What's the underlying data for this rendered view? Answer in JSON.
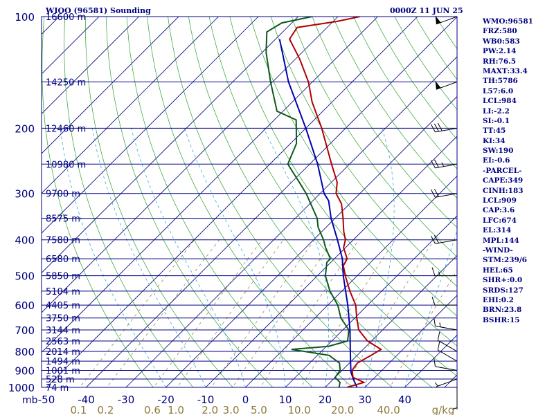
{
  "header": {
    "title": "WIOO (96581) Sounding",
    "datetime": "0000Z 11 JUN 25"
  },
  "indices": [
    "WMO:96581",
    "FRZ:580",
    "WB0:583",
    "PW:2.14",
    "RH:76.5",
    "MAXT:33.4",
    "TH:5786",
    "L57:6.0",
    "LCL:984",
    "LI:-2.2",
    "SI:-0.1",
    "TT:45",
    "KI:34",
    "SW:190",
    "EI:-0.6",
    "-PARCEL-",
    "CAPE:349",
    "CINH:183",
    "LCL:909",
    "CAP:3.6",
    "LFC:674",
    "EL:314",
    "MPL:144",
    "-WIND-",
    "STM:239/6",
    "HEL:65",
    "SHR+:0.0",
    "SRDS:127",
    "EHI:0.2",
    "BRN:23.8",
    "BSHR:15"
  ],
  "chart_data": {
    "type": "skew-t",
    "pressure_unit_label": "mb",
    "pressure_levels": [
      1000,
      900,
      800,
      700,
      600,
      500,
      400,
      300,
      200,
      100
    ],
    "height_labels": [
      {
        "p": 100,
        "label": "16600 m"
      },
      {
        "p": 150,
        "label": "14250 m"
      },
      {
        "p": 200,
        "label": "12460 m"
      },
      {
        "p": 250,
        "label": "10980 m"
      },
      {
        "p": 300,
        "label": "9700 m"
      },
      {
        "p": 350,
        "label": "8575 m"
      },
      {
        "p": 400,
        "label": "7580 m"
      },
      {
        "p": 450,
        "label": "6580 m"
      },
      {
        "p": 500,
        "label": "5850 m"
      },
      {
        "p": 550,
        "label": "5104 m"
      },
      {
        "p": 600,
        "label": "4405 m"
      },
      {
        "p": 650,
        "label": "3750 m"
      },
      {
        "p": 700,
        "label": "3144 m"
      },
      {
        "p": 750,
        "label": "2563 m"
      },
      {
        "p": 800,
        "label": "2014 m"
      },
      {
        "p": 850,
        "label": "1494 m"
      },
      {
        "p": 900,
        "label": "1001 m"
      },
      {
        "p": 950,
        "label": "528 m"
      },
      {
        "p": 1000,
        "label": "74 m"
      }
    ],
    "temperature_ticks": [
      -50,
      -40,
      -30,
      -20,
      -10,
      0,
      10,
      20,
      30,
      40
    ],
    "mixing_ratio_ticks": [
      "0.1",
      "0.2",
      "0.6",
      "1.0",
      "2.0",
      "3.0",
      "5.0",
      "10.0",
      "20.0",
      "40.0"
    ],
    "mixing_ratio_unit": "g/kg",
    "temperature": [
      {
        "p": 1000,
        "t": 25.5
      },
      {
        "p": 970,
        "t": 28.5
      },
      {
        "p": 940,
        "t": 24.5
      },
      {
        "p": 900,
        "t": 22.5
      },
      {
        "p": 860,
        "t": 22.0
      },
      {
        "p": 820,
        "t": 23.5
      },
      {
        "p": 790,
        "t": 24.5
      },
      {
        "p": 750,
        "t": 19.0
      },
      {
        "p": 700,
        "t": 14.0
      },
      {
        "p": 650,
        "t": 10.5
      },
      {
        "p": 600,
        "t": 7.0
      },
      {
        "p": 550,
        "t": 2.0
      },
      {
        "p": 500,
        "t": -3.0
      },
      {
        "p": 470,
        "t": -6.0
      },
      {
        "p": 450,
        "t": -6.8
      },
      {
        "p": 420,
        "t": -10.5
      },
      {
        "p": 400,
        "t": -12.0
      },
      {
        "p": 380,
        "t": -14.5
      },
      {
        "p": 350,
        "t": -18.0
      },
      {
        "p": 320,
        "t": -22.0
      },
      {
        "p": 300,
        "t": -26.0
      },
      {
        "p": 280,
        "t": -28.5
      },
      {
        "p": 250,
        "t": -34.5
      },
      {
        "p": 200,
        "t": -46.0
      },
      {
        "p": 170,
        "t": -55.0
      },
      {
        "p": 150,
        "t": -61.0
      },
      {
        "p": 130,
        "t": -69.0
      },
      {
        "p": 115,
        "t": -76.5
      },
      {
        "p": 107,
        "t": -77.5
      },
      {
        "p": 103,
        "t": -69.0
      },
      {
        "p": 100,
        "t": -64.5
      }
    ],
    "dewpoint": [
      {
        "p": 1000,
        "t": 23.5
      },
      {
        "p": 970,
        "t": 22.5
      },
      {
        "p": 940,
        "t": 20.0
      },
      {
        "p": 900,
        "t": 19.5
      },
      {
        "p": 860,
        "t": 17.5
      },
      {
        "p": 820,
        "t": 13.0
      },
      {
        "p": 790,
        "t": 2.0
      },
      {
        "p": 775,
        "t": 10.5
      },
      {
        "p": 750,
        "t": 14.0
      },
      {
        "p": 700,
        "t": 11.5
      },
      {
        "p": 650,
        "t": 6.5
      },
      {
        "p": 600,
        "t": 2.5
      },
      {
        "p": 550,
        "t": -3.0
      },
      {
        "p": 500,
        "t": -8.0
      },
      {
        "p": 460,
        "t": -11.0
      },
      {
        "p": 450,
        "t": -11.0
      },
      {
        "p": 420,
        "t": -15.0
      },
      {
        "p": 400,
        "t": -17.5
      },
      {
        "p": 370,
        "t": -22.0
      },
      {
        "p": 350,
        "t": -24.5
      },
      {
        "p": 300,
        "t": -33.5
      },
      {
        "p": 280,
        "t": -38.0
      },
      {
        "p": 250,
        "t": -45.5
      },
      {
        "p": 220,
        "t": -48.5
      },
      {
        "p": 190,
        "t": -54.5
      },
      {
        "p": 180,
        "t": -61.5
      },
      {
        "p": 150,
        "t": -70.5
      },
      {
        "p": 125,
        "t": -79.0
      },
      {
        "p": 110,
        "t": -84.0
      },
      {
        "p": 104,
        "t": -82.5
      },
      {
        "p": 100,
        "t": -76.5
      }
    ],
    "parcel": [
      {
        "p": 1000,
        "t": 28.0
      },
      {
        "p": 950,
        "t": 25.0
      },
      {
        "p": 909,
        "t": 22.6
      },
      {
        "p": 850,
        "t": 19.8
      },
      {
        "p": 800,
        "t": 17.3
      },
      {
        "p": 700,
        "t": 11.8
      },
      {
        "p": 600,
        "t": 5.0
      },
      {
        "p": 500,
        "t": -3.5
      },
      {
        "p": 450,
        "t": -8.0
      },
      {
        "p": 400,
        "t": -14.0
      },
      {
        "p": 350,
        "t": -21.0
      },
      {
        "p": 314,
        "t": -26.0
      },
      {
        "p": 300,
        "t": -29.0
      },
      {
        "p": 250,
        "t": -38.0
      },
      {
        "p": 200,
        "t": -50.0
      },
      {
        "p": 150,
        "t": -66.0
      },
      {
        "p": 115,
        "t": -79.0
      }
    ],
    "winds": [
      {
        "p": 1000,
        "dir": 180,
        "kt": 5
      },
      {
        "p": 950,
        "dir": 250,
        "kt": 5
      },
      {
        "p": 900,
        "dir": 280,
        "kt": 10
      },
      {
        "p": 850,
        "dir": 300,
        "kt": 10
      },
      {
        "p": 800,
        "dir": 300,
        "kt": 10
      },
      {
        "p": 700,
        "dir": 280,
        "kt": 15
      },
      {
        "p": 600,
        "dir": 270,
        "kt": 10
      },
      {
        "p": 500,
        "dir": 270,
        "kt": 15
      },
      {
        "p": 400,
        "dir": 260,
        "kt": 20
      },
      {
        "p": 300,
        "dir": 260,
        "kt": 20
      },
      {
        "p": 250,
        "dir": 260,
        "kt": 25
      },
      {
        "p": 200,
        "dir": 260,
        "kt": 30
      },
      {
        "p": 150,
        "dir": 250,
        "kt": 50
      },
      {
        "p": 100,
        "dir": 250,
        "kt": 50
      }
    ]
  }
}
